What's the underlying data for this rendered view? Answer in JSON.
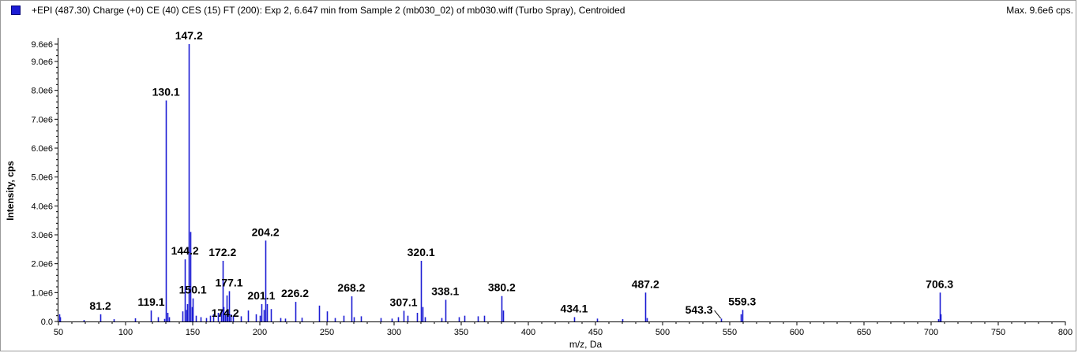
{
  "header": {
    "title": "+EPI (487.30) Charge (+0) CE (40) CES (15) FT (200): Exp 2, 6.647 min from Sample 2 (mb030_02) of mb030.wiff (Turbo Spray), Centroided",
    "max_label": "Max. 9.6e6 cps.",
    "series_color": "#1c1cd4"
  },
  "chart_data": {
    "type": "bar",
    "xlabel": "m/z, Da",
    "ylabel": "Intensity, cps",
    "xlim": [
      50,
      800
    ],
    "ylim": [
      0,
      9600000.0
    ],
    "x_ticks": [
      50,
      100,
      150,
      200,
      250,
      300,
      350,
      400,
      450,
      500,
      550,
      600,
      650,
      700,
      750,
      800
    ],
    "y_ticks": [
      {
        "value": 0,
        "label": "0.0"
      },
      {
        "value": 1000000,
        "label": "1.0e6"
      },
      {
        "value": 2000000,
        "label": "2.0e6"
      },
      {
        "value": 3000000,
        "label": "3.0e6"
      },
      {
        "value": 4000000,
        "label": "4.0e6"
      },
      {
        "value": 5000000,
        "label": "5.0e6"
      },
      {
        "value": 6000000,
        "label": "6.0e6"
      },
      {
        "value": 7000000,
        "label": "7.0e6"
      },
      {
        "value": 8000000,
        "label": "8.0e6"
      },
      {
        "value": 9000000,
        "label": "9.0e6"
      },
      {
        "value": 9600000,
        "label": "9.6e6"
      }
    ],
    "labeled_peaks": [
      {
        "mz": 81.2,
        "intensity": 250000,
        "label": "81.2"
      },
      {
        "mz": 119.1,
        "intensity": 380000,
        "label": "119.1"
      },
      {
        "mz": 130.1,
        "intensity": 7650000,
        "label": "130.1"
      },
      {
        "mz": 144.2,
        "intensity": 2150000,
        "label": "144.2"
      },
      {
        "mz": 147.2,
        "intensity": 9600000,
        "label": "147.2"
      },
      {
        "mz": 150.1,
        "intensity": 800000,
        "label": "150.1"
      },
      {
        "mz": 172.2,
        "intensity": 2100000,
        "label": "172.2"
      },
      {
        "mz": 174.2,
        "intensity": 250000,
        "label": "174.2"
      },
      {
        "mz": 177.1,
        "intensity": 1050000,
        "label": "177.1"
      },
      {
        "mz": 201.1,
        "intensity": 600000,
        "label": "201.1"
      },
      {
        "mz": 204.2,
        "intensity": 2800000,
        "label": "204.2"
      },
      {
        "mz": 226.2,
        "intensity": 680000,
        "label": "226.2"
      },
      {
        "mz": 268.2,
        "intensity": 870000,
        "label": "268.2"
      },
      {
        "mz": 307.1,
        "intensity": 370000,
        "label": "307.1"
      },
      {
        "mz": 320.1,
        "intensity": 2100000,
        "label": "320.1"
      },
      {
        "mz": 338.1,
        "intensity": 750000,
        "label": "338.1"
      },
      {
        "mz": 380.2,
        "intensity": 880000,
        "label": "380.2"
      },
      {
        "mz": 434.1,
        "intensity": 150000,
        "label": "434.1"
      },
      {
        "mz": 487.2,
        "intensity": 1000000,
        "label": "487.2"
      },
      {
        "mz": 543.3,
        "intensity": 100000,
        "label": "543.3"
      },
      {
        "mz": 559.3,
        "intensity": 400000,
        "label": "559.3"
      },
      {
        "mz": 706.3,
        "intensity": 1000000,
        "label": "706.3"
      }
    ],
    "minor_peaks": [
      {
        "mz": 50.5,
        "intensity": 250000
      },
      {
        "mz": 51.2,
        "intensity": 150000
      },
      {
        "mz": 69.1,
        "intensity": 50000
      },
      {
        "mz": 91.1,
        "intensity": 80000
      },
      {
        "mz": 107.1,
        "intensity": 110000
      },
      {
        "mz": 124.1,
        "intensity": 150000
      },
      {
        "mz": 129.1,
        "intensity": 90000
      },
      {
        "mz": 131.1,
        "intensity": 300000
      },
      {
        "mz": 132.1,
        "intensity": 150000
      },
      {
        "mz": 142.1,
        "intensity": 350000
      },
      {
        "mz": 145.1,
        "intensity": 400000
      },
      {
        "mz": 146.1,
        "intensity": 600000
      },
      {
        "mz": 148.2,
        "intensity": 3100000
      },
      {
        "mz": 149.2,
        "intensity": 500000
      },
      {
        "mz": 152.1,
        "intensity": 200000
      },
      {
        "mz": 156.1,
        "intensity": 150000
      },
      {
        "mz": 160.1,
        "intensity": 120000
      },
      {
        "mz": 163.1,
        "intensity": 200000
      },
      {
        "mz": 165.1,
        "intensity": 250000
      },
      {
        "mz": 169.1,
        "intensity": 300000
      },
      {
        "mz": 171.1,
        "intensity": 400000
      },
      {
        "mz": 173.2,
        "intensity": 500000
      },
      {
        "mz": 175.1,
        "intensity": 900000
      },
      {
        "mz": 176.1,
        "intensity": 350000
      },
      {
        "mz": 178.1,
        "intensity": 250000
      },
      {
        "mz": 180.1,
        "intensity": 200000
      },
      {
        "mz": 186.1,
        "intensity": 180000
      },
      {
        "mz": 191.1,
        "intensity": 380000
      },
      {
        "mz": 197.1,
        "intensity": 250000
      },
      {
        "mz": 200.1,
        "intensity": 200000
      },
      {
        "mz": 203.1,
        "intensity": 400000
      },
      {
        "mz": 205.2,
        "intensity": 600000
      },
      {
        "mz": 208.1,
        "intensity": 430000
      },
      {
        "mz": 215.1,
        "intensity": 120000
      },
      {
        "mz": 219.1,
        "intensity": 100000
      },
      {
        "mz": 231.1,
        "intensity": 130000
      },
      {
        "mz": 244.1,
        "intensity": 550000
      },
      {
        "mz": 250.1,
        "intensity": 350000
      },
      {
        "mz": 256.1,
        "intensity": 120000
      },
      {
        "mz": 262.1,
        "intensity": 200000
      },
      {
        "mz": 270.1,
        "intensity": 150000
      },
      {
        "mz": 275.1,
        "intensity": 180000
      },
      {
        "mz": 290.1,
        "intensity": 120000
      },
      {
        "mz": 298.1,
        "intensity": 100000
      },
      {
        "mz": 303.1,
        "intensity": 150000
      },
      {
        "mz": 310.1,
        "intensity": 200000
      },
      {
        "mz": 317.1,
        "intensity": 300000
      },
      {
        "mz": 321.1,
        "intensity": 500000
      },
      {
        "mz": 323.1,
        "intensity": 150000
      },
      {
        "mz": 335.1,
        "intensity": 120000
      },
      {
        "mz": 348.1,
        "intensity": 150000
      },
      {
        "mz": 352.1,
        "intensity": 200000
      },
      {
        "mz": 362.1,
        "intensity": 180000
      },
      {
        "mz": 367.1,
        "intensity": 200000
      },
      {
        "mz": 381.2,
        "intensity": 380000
      },
      {
        "mz": 451.1,
        "intensity": 100000
      },
      {
        "mz": 470.2,
        "intensity": 80000
      },
      {
        "mz": 488.2,
        "intensity": 120000
      },
      {
        "mz": 558.2,
        "intensity": 250000
      },
      {
        "mz": 705.3,
        "intensity": 80000
      },
      {
        "mz": 707.3,
        "intensity": 250000
      }
    ]
  }
}
